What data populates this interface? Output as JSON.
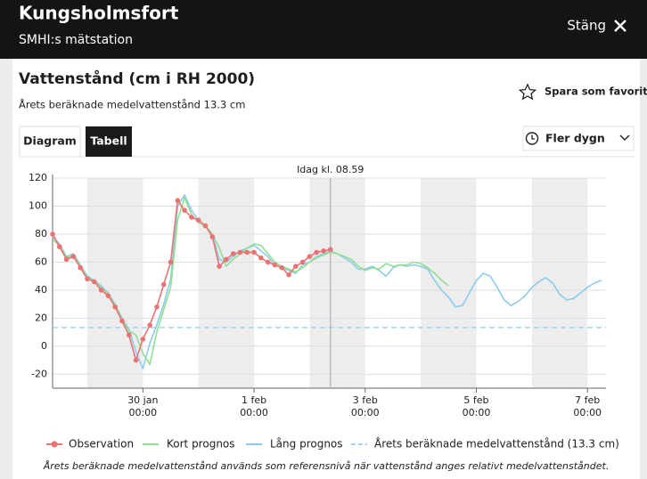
{
  "header": {
    "title": "Kungsholmsfort",
    "subtitle": "SMHI:s mätstation",
    "close": "Stäng"
  },
  "panel": {
    "title": "Vattenstånd (cm i RH 2000)",
    "subtitle": "Årets beräknade medelvattenstånd 13.3 cm",
    "favorite": "Spara som favorit",
    "tabs": [
      "Diagram",
      "Tabell"
    ],
    "dropdown": "Fler dygn"
  },
  "chart_data": {
    "type": "line",
    "x": [
      "28 jan 09:00",
      "28 jan 12:00",
      "28 jan 15:00",
      "28 jan 18:00",
      "28 jan 21:00",
      "29 jan 00:00",
      "29 jan 03:00",
      "29 jan 06:00",
      "29 jan 09:00",
      "29 jan 12:00",
      "29 jan 15:00",
      "29 jan 18:00",
      "29 jan 21:00",
      "30 jan 00:00",
      "30 jan 03:00",
      "30 jan 06:00",
      "30 jan 09:00",
      "30 jan 12:00",
      "30 jan 15:00",
      "30 jan 18:00",
      "30 jan 21:00",
      "31 jan 00:00",
      "31 jan 03:00",
      "31 jan 06:00",
      "31 jan 09:00",
      "31 jan 12:00",
      "31 jan 15:00",
      "31 jan 18:00",
      "31 jan 21:00",
      "1 feb 00:00",
      "1 feb 03:00",
      "1 feb 06:00",
      "1 feb 09:00",
      "1 feb 12:00",
      "1 feb 15:00",
      "1 feb 18:00",
      "1 feb 21:00",
      "2 feb 00:00",
      "2 feb 03:00",
      "2 feb 06:00",
      "2 feb 09:00",
      "2 feb 12:00",
      "2 feb 15:00",
      "2 feb 18:00",
      "2 feb 21:00",
      "3 feb 00:00",
      "3 feb 03:00",
      "3 feb 06:00",
      "3 feb 09:00",
      "3 feb 12:00",
      "3 feb 15:00",
      "3 feb 18:00",
      "3 feb 21:00",
      "4 feb 00:00",
      "4 feb 03:00",
      "4 feb 06:00",
      "4 feb 09:00",
      "4 feb 12:00",
      "4 feb 15:00",
      "4 feb 18:00",
      "4 feb 21:00",
      "5 feb 00:00",
      "5 feb 03:00",
      "5 feb 06:00",
      "5 feb 09:00",
      "5 feb 12:00",
      "5 feb 15:00",
      "5 feb 18:00",
      "5 feb 21:00",
      "6 feb 00:00",
      "6 feb 03:00",
      "6 feb 06:00",
      "6 feb 09:00",
      "6 feb 12:00",
      "6 feb 15:00",
      "6 feb 18:00",
      "6 feb 21:00",
      "7 feb 00:00",
      "7 feb 03:00",
      "7 feb 06:00"
    ],
    "series": [
      {
        "name": "Observation",
        "color": "#ec7373",
        "markers": true,
        "values": [
          80,
          71,
          62,
          64,
          56,
          48,
          46,
          40,
          36,
          28,
          18,
          8,
          -10,
          5,
          15,
          28,
          44,
          60,
          104,
          97,
          92,
          90,
          86,
          78,
          57,
          62,
          66,
          67,
          67,
          67,
          63,
          60,
          58,
          56,
          51,
          57,
          60,
          64,
          67,
          68,
          69,
          null,
          null,
          null,
          null,
          null,
          null,
          null,
          null,
          null,
          null,
          null,
          null,
          null,
          null,
          null,
          null,
          null,
          null,
          null,
          null,
          null,
          null,
          null,
          null,
          null,
          null,
          null,
          null,
          null,
          null,
          null,
          null,
          null,
          null,
          null,
          null,
          null,
          null,
          null
        ]
      },
      {
        "name": "Kort prognos",
        "color": "#8fe08f",
        "markers": false,
        "values": [
          76,
          72,
          63,
          65,
          57,
          49,
          46,
          42,
          37,
          29,
          19,
          11,
          8,
          -5,
          -13,
          10,
          26,
          42,
          90,
          106,
          94,
          88,
          86,
          80,
          70,
          57,
          62,
          66,
          70,
          73,
          72,
          66,
          60,
          57,
          55,
          53,
          56,
          60,
          63,
          65,
          67,
          66,
          64,
          62,
          57,
          54,
          56,
          55,
          59,
          57,
          58,
          58,
          60,
          59,
          56,
          52,
          47,
          43,
          null,
          null,
          null,
          null,
          null,
          null,
          null,
          null,
          null,
          null,
          null,
          null,
          null,
          null,
          null,
          null,
          null,
          null,
          null,
          null,
          null,
          null
        ]
      },
      {
        "name": "Lång prognos",
        "color": "#8ccbef",
        "markers": false,
        "values": [
          78,
          73,
          64,
          66,
          58,
          50,
          47,
          43,
          38,
          30,
          20,
          12,
          -4,
          -16,
          2,
          15,
          30,
          48,
          100,
          108,
          97,
          90,
          86,
          80,
          62,
          60,
          64,
          68,
          70,
          72,
          68,
          64,
          58,
          56,
          54,
          52,
          58,
          60,
          64,
          66,
          68,
          66,
          63,
          60,
          55,
          55,
          57,
          54,
          50,
          56,
          58,
          57,
          58,
          57,
          55,
          47,
          40,
          35,
          28,
          29,
          38,
          47,
          52,
          50,
          42,
          33,
          29,
          32,
          36,
          42,
          46,
          49,
          45,
          37,
          33,
          34,
          38,
          42,
          45,
          47
        ]
      }
    ],
    "reference_line": {
      "name": "Årets beräknade medelvattenstånd (13.3 cm)",
      "value": 13.3,
      "color": "#9fd5f1"
    },
    "annotation": {
      "text": "Idag kl. 08.59",
      "x": "2 feb 08:59"
    },
    "xlim": [
      "28 jan 09:00",
      "7 feb 08:00"
    ],
    "xticks": [
      "30 jan 00:00",
      "1 feb 00:00",
      "3 feb 00:00",
      "5 feb 00:00",
      "7 feb 00:00"
    ],
    "ylim": [
      -30,
      120
    ],
    "yticks": [
      -20,
      0,
      20,
      40,
      60,
      80,
      100,
      120
    ],
    "grid": true,
    "note": "Årets beräknade medelvattenstånd används som referensnivå när vattenstånd anges relativt medelvattenståndet."
  }
}
